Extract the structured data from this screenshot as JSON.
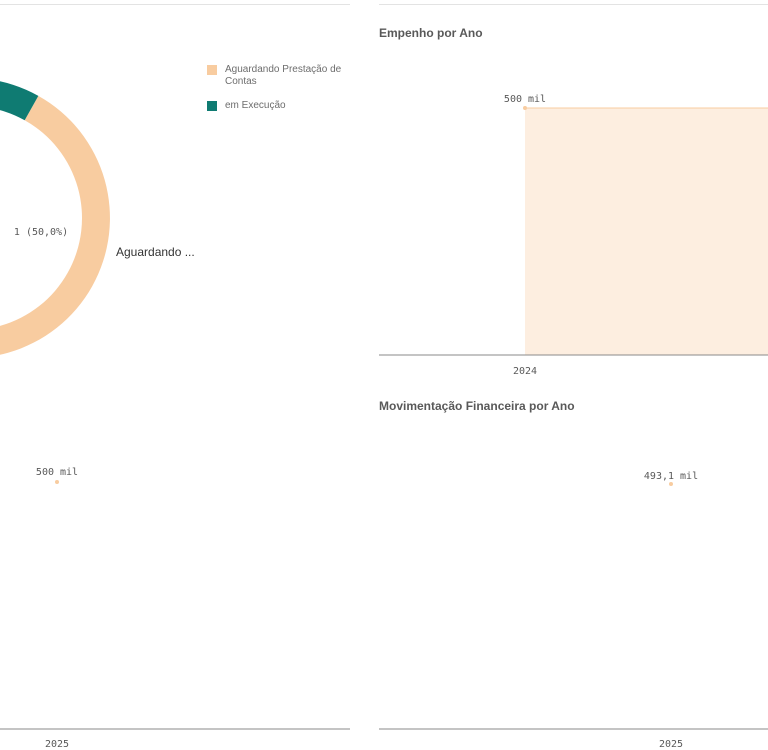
{
  "charts": {
    "situacao": {
      "legend": [
        {
          "label": "Aguardando Prestação de Contas",
          "color": "#f8cca0"
        },
        {
          "label": "em Execução",
          "color": "#0f7b72"
        }
      ],
      "center_label": "1 (50,0%)",
      "slice_label": "Aguardando ..."
    },
    "empenho": {
      "title": "Empenho por Ano",
      "value_label": "500 mil",
      "x_label": "2024"
    },
    "left_bottom": {
      "value_label": "500 mil",
      "x_label": "2025"
    },
    "movimentacao": {
      "title": "Movimentação Financeira por Ano",
      "value_label": "493,1 mil",
      "x_label": "2025"
    }
  },
  "chart_data": [
    {
      "type": "pie",
      "title": "",
      "categories": [
        "Aguardando Prestação de Contas",
        "em Execução"
      ],
      "values": [
        1,
        1
      ],
      "percent": [
        50.0,
        50.0
      ],
      "legend": "top-right",
      "colors": [
        "#f8cca0",
        "#0f7b72"
      ]
    },
    {
      "type": "area",
      "title": "Empenho por Ano",
      "x": [
        "2024"
      ],
      "series": [
        {
          "values": [
            500000
          ]
        }
      ],
      "data_labels": [
        "500 mil"
      ],
      "xlabel": "",
      "ylabel": "",
      "color": "#f8cca0"
    },
    {
      "type": "line",
      "title": "",
      "x": [
        "2025"
      ],
      "series": [
        {
          "values": [
            500000
          ]
        }
      ],
      "data_labels": [
        "500 mil"
      ],
      "xlabel": "",
      "ylabel": "",
      "color": "#f8cca0"
    },
    {
      "type": "line",
      "title": "Movimentação Financeira por Ano",
      "x": [
        "2025"
      ],
      "series": [
        {
          "values": [
            493100
          ]
        }
      ],
      "data_labels": [
        "493,1 mil"
      ],
      "xlabel": "",
      "ylabel": "",
      "color": "#f8cca0"
    }
  ]
}
